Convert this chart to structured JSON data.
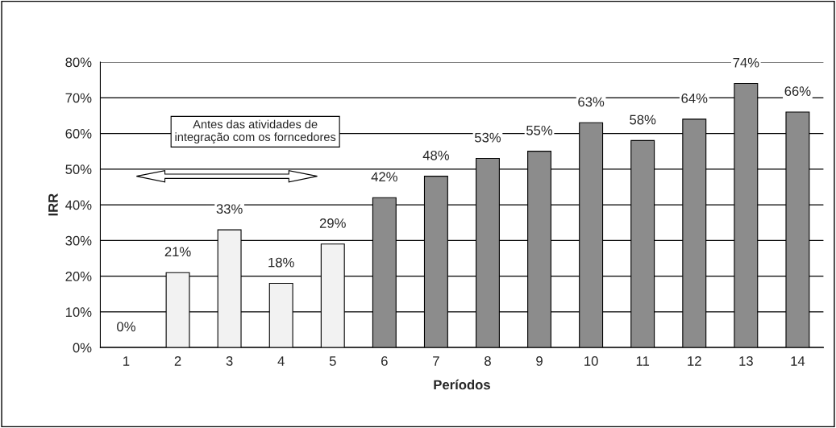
{
  "chart_data": {
    "type": "bar",
    "xlabel": "Períodos",
    "ylabel": "IRR",
    "categories": [
      "1",
      "2",
      "3",
      "4",
      "5",
      "6",
      "7",
      "8",
      "9",
      "10",
      "11",
      "12",
      "13",
      "14"
    ],
    "values": [
      0,
      21,
      33,
      18,
      29,
      42,
      48,
      53,
      55,
      63,
      58,
      64,
      74,
      66
    ],
    "value_labels": [
      "0%",
      "21%",
      "33%",
      "18%",
      "29%",
      "42%",
      "48%",
      "53%",
      "55%",
      "63%",
      "58%",
      "64%",
      "74%",
      "66%"
    ],
    "colors": [
      "#f2f2f2",
      "#f2f2f2",
      "#f2f2f2",
      "#f2f2f2",
      "#f2f2f2",
      "#8c8c8c",
      "#8c8c8c",
      "#8c8c8c",
      "#8c8c8c",
      "#8c8c8c",
      "#8c8c8c",
      "#8c8c8c",
      "#8c8c8c",
      "#8c8c8c"
    ],
    "ylim": [
      0,
      80
    ],
    "yticks": [
      {
        "value": 0,
        "label": "0%"
      },
      {
        "value": 10,
        "label": "10%"
      },
      {
        "value": 20,
        "label": "20%"
      },
      {
        "value": 30,
        "label": "30%"
      },
      {
        "value": 40,
        "label": "40%"
      },
      {
        "value": 50,
        "label": "50%"
      },
      {
        "value": 60,
        "label": "60%"
      },
      {
        "value": 70,
        "label": "70%"
      },
      {
        "value": 80,
        "label": "80%"
      }
    ],
    "grid": "y",
    "annotations": [
      "Antes das atividades de\nintegração com os forncedores"
    ]
  }
}
